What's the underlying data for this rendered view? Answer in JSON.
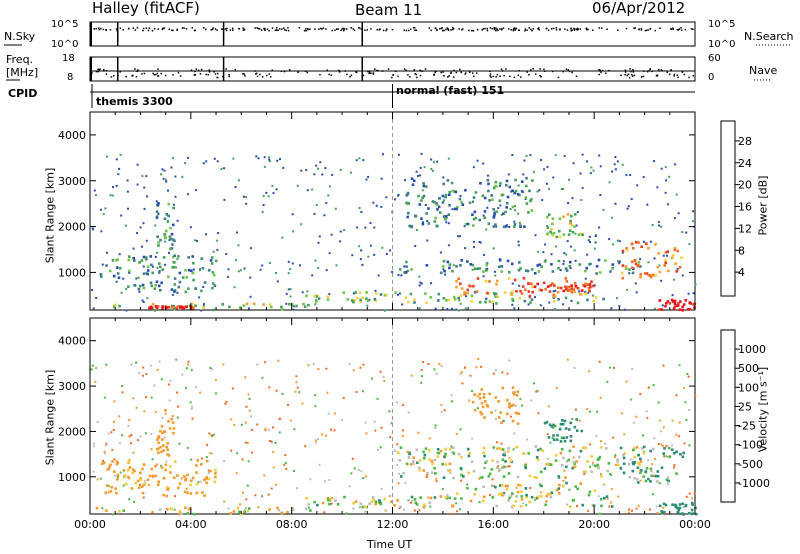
{
  "header": {
    "site": "Halley (fitACF)",
    "beam": "Beam 11",
    "date": "06/Apr/2012"
  },
  "panels": {
    "nsky": {
      "left_label": "N.Sky",
      "left_ticks": [
        "10^5",
        "10^0"
      ],
      "right_ticks": [
        "10^5",
        "10^0"
      ],
      "right_label": "N.Search"
    },
    "freq": {
      "left_label_1": "Freq.",
      "left_label_2": "[MHz]",
      "left_ticks": [
        "18",
        "8"
      ],
      "right_ticks": [
        "60",
        "0"
      ],
      "right_label": "Nave"
    },
    "cpid": {
      "label": "CPID",
      "modes": [
        {
          "name": "themis 3300"
        },
        {
          "name": "normal (fast) 151"
        }
      ]
    }
  },
  "axes": {
    "ylabel": "Slant Range [km]",
    "xlabel": "Time UT",
    "y_ticks": [
      "1000",
      "2000",
      "3000",
      "4000"
    ],
    "x_ticks": [
      "00:00",
      "04:00",
      "08:00",
      "12:00",
      "16:00",
      "20:00",
      "00:00"
    ]
  },
  "power_colorbar": {
    "label": "Power [dB]",
    "ticks": [
      "4",
      "8",
      "12",
      "16",
      "20",
      "24",
      "28"
    ],
    "colors": [
      "#0a1df0",
      "#274dad",
      "#3f7f8a",
      "#47a05a",
      "#6fc44a",
      "#f1d43a",
      "#f8a02f",
      "#f46d29",
      "#e83a22",
      "#e8121a"
    ]
  },
  "velocity_colorbar": {
    "label": "Velocity [m s⁻¹]",
    "ticks": [
      "1000",
      "500",
      "100",
      "25",
      "-25",
      "-100",
      "-500",
      "-1000"
    ],
    "colors": [
      "#1a3ac8",
      "#2f62a8",
      "#2f8a75",
      "#49b843",
      "#bcbcbc",
      "#f4cb3a",
      "#f49a2d",
      "#ef6826",
      "#e73522"
    ]
  },
  "chart_data": [
    {
      "type": "heatmap",
      "name": "power",
      "xlabel": "Time UT",
      "ylabel": "Slant Range [km]",
      "x_range_hours": [
        0,
        24
      ],
      "ylim": [
        180,
        4500
      ],
      "colorbar_label": "Power [dB]",
      "cmap_range": [
        0,
        30
      ],
      "echo_regions": [
        {
          "t0": 0.0,
          "t1": 8.8,
          "r0": 200,
          "r1": 350,
          "value": 14
        },
        {
          "t0": 2.3,
          "t1": 4.2,
          "r0": 240,
          "r1": 290,
          "value": 27
        },
        {
          "t0": 0.3,
          "t1": 5.0,
          "r0": 600,
          "r1": 1400,
          "value": 9
        },
        {
          "t0": 2.6,
          "t1": 3.3,
          "r0": 1500,
          "r1": 2600,
          "value": 10
        },
        {
          "t0": 8.5,
          "t1": 21.0,
          "r0": 350,
          "r1": 600,
          "value": 12
        },
        {
          "t0": 14.0,
          "t1": 20.0,
          "r0": 500,
          "r1": 900,
          "value": 22
        },
        {
          "t0": 17.0,
          "t1": 19.8,
          "r0": 620,
          "r1": 800,
          "value": 26
        },
        {
          "t0": 12.0,
          "t1": 22.0,
          "r0": 1000,
          "r1": 1300,
          "value": 8
        },
        {
          "t0": 18.0,
          "t1": 19.5,
          "r0": 1800,
          "r1": 2300,
          "value": 14
        },
        {
          "t0": 12.5,
          "t1": 17.5,
          "r0": 2000,
          "r1": 3100,
          "value": 8
        },
        {
          "t0": 21.0,
          "t1": 23.5,
          "r0": 900,
          "r1": 1700,
          "value": 22
        },
        {
          "t0": 22.5,
          "t1": 24.0,
          "r0": 200,
          "r1": 450,
          "value": 29
        }
      ]
    },
    {
      "type": "heatmap",
      "name": "velocity",
      "xlabel": "Time UT",
      "ylabel": "Slant Range [km]",
      "x_range_hours": [
        0,
        24
      ],
      "ylim": [
        180,
        4500
      ],
      "colorbar_label": "Velocity [m s⁻¹]",
      "echo_regions": [
        {
          "t0": 0.0,
          "t1": 8.8,
          "r0": 200,
          "r1": 350,
          "value": -100
        },
        {
          "t0": 0.3,
          "t1": 5.0,
          "r0": 600,
          "r1": 1400,
          "value": -200
        },
        {
          "t0": 2.6,
          "t1": 3.3,
          "r0": 1500,
          "r1": 2600,
          "value": -300
        },
        {
          "t0": 8.5,
          "t1": 21.0,
          "r0": 350,
          "r1": 600,
          "value": 0
        },
        {
          "t0": 14.0,
          "t1": 20.0,
          "r0": 550,
          "r1": 900,
          "value": 0
        },
        {
          "t0": 12.0,
          "t1": 22.0,
          "r0": 1000,
          "r1": 1700,
          "value": 0
        },
        {
          "t0": 18.0,
          "t1": 19.5,
          "r0": 1800,
          "r1": 2300,
          "value": 200
        },
        {
          "t0": 15.0,
          "t1": 17.0,
          "r0": 2200,
          "r1": 3000,
          "value": -300
        },
        {
          "t0": 21.0,
          "t1": 23.5,
          "r0": 900,
          "r1": 1700,
          "value": 150
        },
        {
          "t0": 22.5,
          "t1": 24.0,
          "r0": 200,
          "r1": 450,
          "value": 300
        }
      ]
    }
  ]
}
